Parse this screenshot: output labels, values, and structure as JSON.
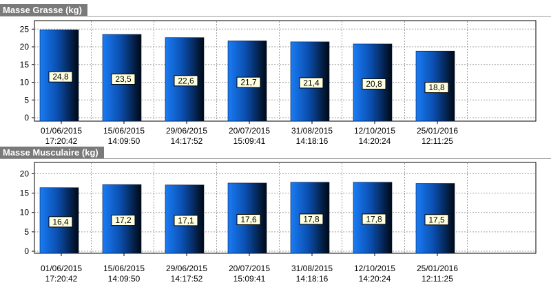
{
  "chart_data": [
    {
      "type": "bar",
      "title": "Masse Grasse (kg)",
      "categories": [
        [
          "01/06/2015",
          "17:20:42"
        ],
        [
          "15/06/2015",
          "14:09:50"
        ],
        [
          "29/06/2015",
          "14:17:52"
        ],
        [
          "20/07/2015",
          "15:09:41"
        ],
        [
          "31/08/2015",
          "14:18:16"
        ],
        [
          "12/10/2015",
          "14:20:24"
        ],
        [
          "25/01/2016",
          "12:11:25"
        ]
      ],
      "values": [
        24.8,
        23.5,
        22.6,
        21.7,
        21.4,
        20.8,
        18.8
      ],
      "value_labels": [
        "24,8",
        "23,5",
        "22,6",
        "21,7",
        "21,4",
        "20,8",
        "18,8"
      ],
      "yticks": [
        0,
        5,
        10,
        15,
        20,
        25
      ],
      "ylim": [
        0,
        27
      ],
      "grid": true,
      "colors": {
        "bar_light": "#1a7cf5",
        "bar_dark": "#000814",
        "label_bg": "#ffffe1",
        "grid": "#a0a0a0"
      }
    },
    {
      "type": "bar",
      "title": "Masse Musculaire (kg)",
      "categories": [
        [
          "01/06/2015",
          "17:20:42"
        ],
        [
          "15/06/2015",
          "14:09:50"
        ],
        [
          "29/06/2015",
          "14:17:52"
        ],
        [
          "20/07/2015",
          "15:09:41"
        ],
        [
          "31/08/2015",
          "14:18:16"
        ],
        [
          "12/10/2015",
          "14:20:24"
        ],
        [
          "25/01/2016",
          "12:11:25"
        ]
      ],
      "values": [
        16.4,
        17.2,
        17.1,
        17.6,
        17.8,
        17.8,
        17.5
      ],
      "value_labels": [
        "16,4",
        "17,2",
        "17,1",
        "17,6",
        "17,8",
        "17,8",
        "17,5"
      ],
      "yticks": [
        0,
        5,
        10,
        15,
        20
      ],
      "ylim": [
        0,
        21.5
      ],
      "grid": true,
      "colors": {
        "bar_light": "#1a7cf5",
        "bar_dark": "#000814",
        "label_bg": "#ffffe1",
        "grid": "#a0a0a0"
      }
    }
  ]
}
